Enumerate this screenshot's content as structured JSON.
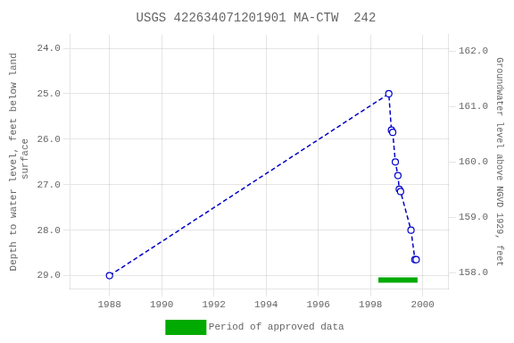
{
  "chart_data": {
    "type": "line",
    "title": "USGS 422634071201901 MA-CTW  242",
    "ylabel": "Depth to water level, feet below land\n surface",
    "y2label": "Groundwater level above NGVD 1929, feet",
    "xlim": [
      1986.5,
      2001.0
    ],
    "xticks": [
      1988,
      1990,
      1992,
      1994,
      1996,
      1998,
      2000
    ],
    "ylim": [
      29.3,
      23.7
    ],
    "yticks": [
      {
        "value": 24.0,
        "label": "24.0"
      },
      {
        "value": 25.0,
        "label": "25.0"
      },
      {
        "value": 26.0,
        "label": "26.0"
      },
      {
        "value": 27.0,
        "label": "27.0"
      },
      {
        "value": 28.0,
        "label": "28.0"
      },
      {
        "value": 29.0,
        "label": "29.0"
      }
    ],
    "y2lim": [
      157.7,
      162.3
    ],
    "y2ticks": [
      {
        "value": 158.0,
        "label": "158.0"
      },
      {
        "value": 159.0,
        "label": "159.0"
      },
      {
        "value": 160.0,
        "label": "160.0"
      },
      {
        "value": 161.0,
        "label": "161.0"
      },
      {
        "value": 162.0,
        "label": "162.0"
      }
    ],
    "grid": true,
    "legend": "bottom",
    "x": [
      1988.0,
      1998.7,
      1998.8,
      1998.85,
      1998.95,
      1999.05,
      1999.1,
      1999.15,
      1999.55,
      1999.7,
      1999.75
    ],
    "series": [
      {
        "color": "#0000cc",
        "line_style": "dashed",
        "marker": "open_circle",
        "values": [
          29.0,
          25.0,
          25.8,
          25.85,
          26.5,
          26.8,
          27.1,
          27.15,
          28.0,
          28.65,
          28.65
        ]
      },
      {
        "name": "Period of approved data",
        "color": "#00aa00",
        "line_style": "solid",
        "x": [
          1998.3,
          1999.8
        ],
        "values": [
          29.1,
          29.1
        ]
      }
    ]
  }
}
